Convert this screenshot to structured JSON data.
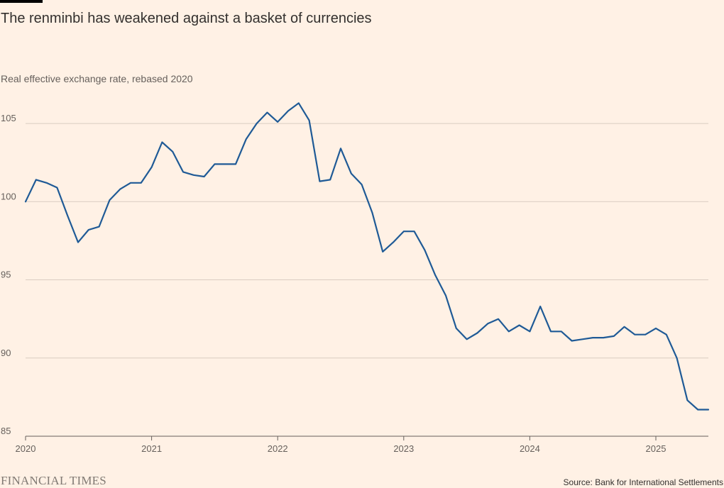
{
  "title": "The renminbi has weakened against a basket of currencies",
  "subtitle": "Real effective exchange rate, rebased 2020",
  "brand": "FINANCIAL TIMES",
  "source": "Source: Bank for International Settlements",
  "colors": {
    "background": "#FFF1E5",
    "line": "#1F5A96",
    "grid": "#D9CCC1",
    "axis": "#66605C"
  },
  "chart_data": {
    "type": "line",
    "title": "The renminbi has weakened against a basket of currencies",
    "subtitle": "Real effective exchange rate, rebased 2020",
    "xlabel": "",
    "ylabel": "",
    "x_ticks": [
      "2020",
      "2021",
      "2022",
      "2023",
      "2024",
      "2025"
    ],
    "y_ticks": [
      85,
      90,
      95,
      100,
      105
    ],
    "xlim": [
      "2020-01",
      "2025-06"
    ],
    "ylim": [
      85,
      106.5
    ],
    "grid": true,
    "legend": "none",
    "series": [
      {
        "x": [
          "2020-01",
          "2020-02",
          "2020-03",
          "2020-04",
          "2020-05",
          "2020-06",
          "2020-07",
          "2020-08",
          "2020-09",
          "2020-10",
          "2020-11",
          "2020-12",
          "2021-01",
          "2021-02",
          "2021-03",
          "2021-04",
          "2021-05",
          "2021-06",
          "2021-07",
          "2021-08",
          "2021-09",
          "2021-10",
          "2021-11",
          "2021-12",
          "2022-01",
          "2022-02",
          "2022-03",
          "2022-04",
          "2022-05",
          "2022-06",
          "2022-07",
          "2022-08",
          "2022-09",
          "2022-10",
          "2022-11",
          "2022-12",
          "2023-01",
          "2023-02",
          "2023-03",
          "2023-04",
          "2023-05",
          "2023-06",
          "2023-07",
          "2023-08",
          "2023-09",
          "2023-10",
          "2023-11",
          "2023-12",
          "2024-01",
          "2024-02",
          "2024-03",
          "2024-04",
          "2024-05",
          "2024-06",
          "2024-07",
          "2024-08",
          "2024-09",
          "2024-10",
          "2024-11",
          "2024-12",
          "2025-01",
          "2025-02",
          "2025-03",
          "2025-04",
          "2025-05",
          "2025-06"
        ],
        "values": [
          100.0,
          101.4,
          101.2,
          100.9,
          99.1,
          97.4,
          98.2,
          98.4,
          100.1,
          100.8,
          101.2,
          101.2,
          102.2,
          103.8,
          103.2,
          101.9,
          101.7,
          101.6,
          102.4,
          102.4,
          102.4,
          104.0,
          105.0,
          105.7,
          105.1,
          105.8,
          106.3,
          105.2,
          101.3,
          101.4,
          103.4,
          101.8,
          101.1,
          99.3,
          96.8,
          97.4,
          98.1,
          98.1,
          96.9,
          95.3,
          94.0,
          91.9,
          91.2,
          91.6,
          92.2,
          92.5,
          91.7,
          92.1,
          91.7,
          93.3,
          91.7,
          91.7,
          91.1,
          91.2,
          91.3,
          91.3,
          91.4,
          92.0,
          91.5,
          91.5,
          91.9,
          91.5,
          90.0,
          87.3,
          86.7,
          86.7
        ]
      }
    ]
  }
}
